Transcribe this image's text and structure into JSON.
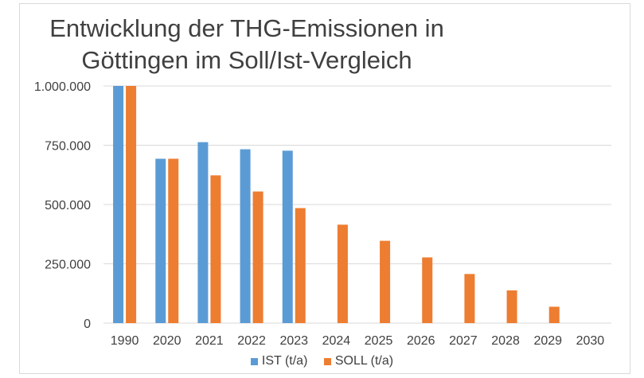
{
  "chart_data": {
    "type": "bar",
    "title_lines": [
      "Entwicklung der THG-Emissionen in",
      "Göttingen im Soll/Ist-Vergleich"
    ],
    "categories": [
      "1990",
      "2020",
      "2021",
      "2022",
      "2023",
      "2024",
      "2025",
      "2026",
      "2027",
      "2028",
      "2029",
      "2030"
    ],
    "series": [
      {
        "name": "IST (t/a)",
        "color": "#5b9bd5",
        "values": [
          1000000,
          693000,
          763000,
          733000,
          727000,
          null,
          null,
          null,
          null,
          null,
          null,
          null
        ]
      },
      {
        "name": "SOLL (t/a)",
        "color": "#ed7d31",
        "values": [
          1000000,
          693000,
          623000,
          555000,
          485000,
          415000,
          347000,
          277000,
          207000,
          138000,
          69000,
          0
        ]
      }
    ],
    "ylim": [
      0,
      1000000
    ],
    "yticks": [
      0,
      250000,
      500000,
      750000,
      1000000
    ],
    "ytick_labels": [
      "0",
      "250.000",
      "500.000",
      "750.000",
      "1.000.000"
    ],
    "grid": true,
    "legend_position": "bottom",
    "xlabel": "",
    "ylabel": ""
  }
}
